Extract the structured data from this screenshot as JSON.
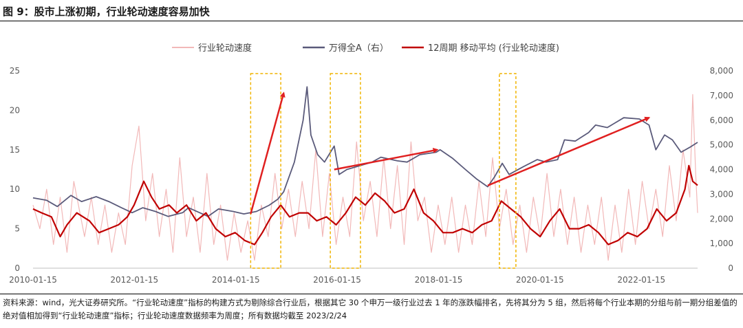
{
  "figure": {
    "title": "图 9：股市上涨初期，行业轮动速度容易加快",
    "note": "资料来源：wind，光大证券研究所。“行业轮动速度”指标的构建方式为剔除综合行业后，根据其它 30 个申万一级行业过去 1 年的涨跌幅排名，先将其分为 5 组，然后将每个行业本期的分组与前一期分组差值的绝对值相加得到“行业轮动速度”指标；行业轮动速度数据频率为周度；所有数据均截至 2023/2/24"
  },
  "colors": {
    "speed": "#f2b8b8",
    "wind_a": "#5a5a7a",
    "ma12": "#c00000",
    "arrow": "#e02020",
    "box": "#f0b400",
    "axis_text": "#595959"
  },
  "chart_data": {
    "type": "line",
    "x_tick_labels": [
      "2010-01-15",
      "2012-01-15",
      "2014-01-15",
      "2016-01-15",
      "2018-01-15",
      "2020-01-15",
      "2022-01-15"
    ],
    "x_range": [
      "2010-01-15",
      "2023-02-24"
    ],
    "y_left": {
      "range": [
        0,
        25
      ],
      "ticks": [
        0,
        5,
        10,
        15,
        20,
        25
      ]
    },
    "y_right": {
      "range": [
        0,
        8000
      ],
      "ticks": [
        "0",
        "1,000",
        "2,000",
        "3,000",
        "4,000",
        "5,000",
        "6,000",
        "7,000",
        "8,000"
      ]
    },
    "legend": {
      "position": "top",
      "entries": [
        "行业轮动速度",
        "万得全A（右）",
        "12周期 移动平均 (行业轮动速度)"
      ]
    },
    "series": [
      {
        "name": "行业轮动速度",
        "axis": "left",
        "points": [
          [
            "2010-01-15",
            8
          ],
          [
            "2010-03-05",
            5
          ],
          [
            "2010-04-23",
            10
          ],
          [
            "2010-06-11",
            3
          ],
          [
            "2010-07-30",
            9
          ],
          [
            "2010-09-17",
            2
          ],
          [
            "2010-11-05",
            11
          ],
          [
            "2011-01-21",
            4
          ],
          [
            "2011-03-11",
            9
          ],
          [
            "2011-04-29",
            3
          ],
          [
            "2011-06-17",
            8
          ],
          [
            "2011-08-05",
            2
          ],
          [
            "2011-09-23",
            7
          ],
          [
            "2011-11-11",
            3
          ],
          [
            "2011-12-30",
            13
          ],
          [
            "2012-02-17",
            18
          ],
          [
            "2012-04-06",
            6
          ],
          [
            "2012-05-25",
            12
          ],
          [
            "2012-07-13",
            4
          ],
          [
            "2012-08-31",
            10
          ],
          [
            "2012-10-19",
            2
          ],
          [
            "2012-12-07",
            14
          ],
          [
            "2013-01-25",
            4
          ],
          [
            "2013-03-15",
            9
          ],
          [
            "2013-05-03",
            2
          ],
          [
            "2013-06-21",
            12
          ],
          [
            "2013-08-09",
            3
          ],
          [
            "2013-09-27",
            8
          ],
          [
            "2013-11-15",
            1
          ],
          [
            "2014-01-03",
            7
          ],
          [
            "2014-02-21",
            2
          ],
          [
            "2014-04-11",
            6
          ],
          [
            "2014-05-30",
            1
          ],
          [
            "2014-07-18",
            8
          ],
          [
            "2014-09-05",
            4
          ],
          [
            "2014-10-24",
            12
          ],
          [
            "2014-12-12",
            5
          ],
          [
            "2015-01-30",
            10
          ],
          [
            "2015-03-20",
            4
          ],
          [
            "2015-05-08",
            11
          ],
          [
            "2015-06-26",
            5
          ],
          [
            "2015-08-14",
            15
          ],
          [
            "2015-10-02",
            4
          ],
          [
            "2015-11-20",
            12
          ],
          [
            "2016-01-08",
            3
          ],
          [
            "2016-02-26",
            9
          ],
          [
            "2016-04-15",
            4
          ],
          [
            "2016-06-03",
            16
          ],
          [
            "2016-07-22",
            6
          ],
          [
            "2016-09-09",
            11
          ],
          [
            "2016-10-28",
            4
          ],
          [
            "2016-12-16",
            14
          ],
          [
            "2017-02-03",
            5
          ],
          [
            "2017-03-24",
            13
          ],
          [
            "2017-05-12",
            3
          ],
          [
            "2017-06-30",
            16
          ],
          [
            "2017-08-18",
            6
          ],
          [
            "2017-10-06",
            9
          ],
          [
            "2017-11-24",
            2
          ],
          [
            "2018-01-12",
            8
          ],
          [
            "2018-03-02",
            3
          ],
          [
            "2018-04-20",
            9
          ],
          [
            "2018-06-08",
            2
          ],
          [
            "2018-07-27",
            8
          ],
          [
            "2018-09-14",
            3
          ],
          [
            "2018-11-02",
            11
          ],
          [
            "2018-12-21",
            4
          ],
          [
            "2019-02-08",
            14
          ],
          [
            "2019-03-29",
            5
          ],
          [
            "2019-05-17",
            10
          ],
          [
            "2019-07-05",
            3
          ],
          [
            "2019-08-23",
            8
          ],
          [
            "2019-10-11",
            2
          ],
          [
            "2019-11-29",
            9
          ],
          [
            "2020-01-17",
            4
          ],
          [
            "2020-03-06",
            12
          ],
          [
            "2020-04-24",
            4
          ],
          [
            "2020-06-12",
            10
          ],
          [
            "2020-07-31",
            3
          ],
          [
            "2020-09-18",
            9
          ],
          [
            "2020-11-06",
            2
          ],
          [
            "2020-12-25",
            8
          ],
          [
            "2021-02-12",
            3
          ],
          [
            "2021-04-02",
            9
          ],
          [
            "2021-05-21",
            1
          ],
          [
            "2021-07-09",
            8
          ],
          [
            "2021-08-27",
            2
          ],
          [
            "2021-10-15",
            10
          ],
          [
            "2021-12-03",
            3
          ],
          [
            "2022-01-21",
            11
          ],
          [
            "2022-03-11",
            5
          ],
          [
            "2022-04-29",
            10
          ],
          [
            "2022-06-17",
            4
          ],
          [
            "2022-08-05",
            13
          ],
          [
            "2022-09-23",
            6
          ],
          [
            "2022-11-11",
            15
          ],
          [
            "2022-12-30",
            9
          ],
          [
            "2023-01-20",
            22
          ],
          [
            "2023-02-10",
            12
          ],
          [
            "2023-02-24",
            7
          ]
        ]
      },
      {
        "name": "万得全A（右）",
        "axis": "right",
        "points": [
          [
            "2010-01-15",
            2850
          ],
          [
            "2010-04-23",
            2750
          ],
          [
            "2010-07-09",
            2500
          ],
          [
            "2010-10-15",
            2950
          ],
          [
            "2010-12-31",
            2700
          ],
          [
            "2011-04-15",
            2900
          ],
          [
            "2011-07-15",
            2700
          ],
          [
            "2011-10-14",
            2450
          ],
          [
            "2011-12-30",
            2250
          ],
          [
            "2012-03-16",
            2450
          ],
          [
            "2012-06-15",
            2300
          ],
          [
            "2012-09-14",
            2100
          ],
          [
            "2012-12-28",
            2250
          ],
          [
            "2013-02-08",
            2450
          ],
          [
            "2013-06-28",
            2100
          ],
          [
            "2013-09-13",
            2400
          ],
          [
            "2013-12-27",
            2300
          ],
          [
            "2014-03-14",
            2200
          ],
          [
            "2014-06-13",
            2300
          ],
          [
            "2014-09-12",
            2550
          ],
          [
            "2014-11-14",
            2800
          ],
          [
            "2014-12-26",
            3100
          ],
          [
            "2015-03-13",
            4300
          ],
          [
            "2015-05-15",
            6000
          ],
          [
            "2015-06-12",
            7350
          ],
          [
            "2015-07-10",
            5400
          ],
          [
            "2015-08-28",
            4600
          ],
          [
            "2015-10-16",
            4300
          ],
          [
            "2015-12-25",
            4950
          ],
          [
            "2016-01-29",
            3800
          ],
          [
            "2016-03-25",
            4000
          ],
          [
            "2016-06-24",
            4150
          ],
          [
            "2016-09-23",
            4300
          ],
          [
            "2016-11-25",
            4500
          ],
          [
            "2017-03-24",
            4350
          ],
          [
            "2017-06-02",
            4300
          ],
          [
            "2017-09-01",
            4600
          ],
          [
            "2017-12-29",
            4700
          ],
          [
            "2018-01-26",
            4800
          ],
          [
            "2018-04-27",
            4450
          ],
          [
            "2018-07-27",
            4000
          ],
          [
            "2018-10-19",
            3600
          ],
          [
            "2019-01-04",
            3300
          ],
          [
            "2019-02-22",
            3700
          ],
          [
            "2019-04-19",
            4250
          ],
          [
            "2019-06-07",
            3800
          ],
          [
            "2019-09-13",
            4100
          ],
          [
            "2019-12-27",
            4400
          ],
          [
            "2020-02-28",
            4300
          ],
          [
            "2020-05-22",
            4400
          ],
          [
            "2020-07-10",
            5200
          ],
          [
            "2020-09-25",
            5150
          ],
          [
            "2020-12-31",
            5500
          ],
          [
            "2021-02-19",
            5800
          ],
          [
            "2021-05-14",
            5700
          ],
          [
            "2021-09-10",
            6100
          ],
          [
            "2021-12-31",
            6050
          ],
          [
            "2022-03-11",
            5800
          ],
          [
            "2022-04-29",
            4800
          ],
          [
            "2022-07-01",
            5400
          ],
          [
            "2022-08-26",
            5200
          ],
          [
            "2022-10-28",
            4700
          ],
          [
            "2022-12-30",
            4900
          ],
          [
            "2023-02-24",
            5100
          ]
        ]
      },
      {
        "name": "12周期 移动平均 (行业轮动速度)",
        "axis": "left",
        "points": [
          [
            "2010-01-15",
            7.5
          ],
          [
            "2010-03-19",
            7
          ],
          [
            "2010-05-28",
            6.5
          ],
          [
            "2010-07-30",
            4
          ],
          [
            "2010-09-17",
            5.5
          ],
          [
            "2010-11-26",
            7
          ],
          [
            "2011-02-25",
            6
          ],
          [
            "2011-05-06",
            4.5
          ],
          [
            "2011-07-15",
            5
          ],
          [
            "2011-09-23",
            5.5
          ],
          [
            "2011-11-25",
            6.5
          ],
          [
            "2012-01-13",
            8
          ],
          [
            "2012-03-23",
            11
          ],
          [
            "2012-05-18",
            9
          ],
          [
            "2012-07-13",
            7.5
          ],
          [
            "2012-09-21",
            8
          ],
          [
            "2012-11-16",
            7
          ],
          [
            "2013-01-25",
            8
          ],
          [
            "2013-04-05",
            6
          ],
          [
            "2013-06-14",
            7
          ],
          [
            "2013-08-23",
            5
          ],
          [
            "2013-11-01",
            4
          ],
          [
            "2014-01-10",
            4.5
          ],
          [
            "2014-03-21",
            3.5
          ],
          [
            "2014-05-30",
            3
          ],
          [
            "2014-07-25",
            4.5
          ],
          [
            "2014-09-26",
            6.5
          ],
          [
            "2014-12-05",
            8
          ],
          [
            "2015-02-06",
            6.5
          ],
          [
            "2015-04-17",
            7
          ],
          [
            "2015-06-19",
            7
          ],
          [
            "2015-08-21",
            6
          ],
          [
            "2015-10-30",
            6.5
          ],
          [
            "2016-01-08",
            5.5
          ],
          [
            "2016-03-18",
            7
          ],
          [
            "2016-05-27",
            9
          ],
          [
            "2016-08-05",
            8
          ],
          [
            "2016-10-14",
            9.5
          ],
          [
            "2016-12-23",
            8.5
          ],
          [
            "2017-03-03",
            7
          ],
          [
            "2017-05-12",
            7.5
          ],
          [
            "2017-07-21",
            10
          ],
          [
            "2017-09-29",
            7
          ],
          [
            "2017-12-08",
            6
          ],
          [
            "2018-02-16",
            4.5
          ],
          [
            "2018-04-27",
            4.5
          ],
          [
            "2018-07-06",
            5
          ],
          [
            "2018-09-14",
            4.5
          ],
          [
            "2018-11-23",
            5.5
          ],
          [
            "2019-02-01",
            6
          ],
          [
            "2019-04-12",
            8.5
          ],
          [
            "2019-06-21",
            7.5
          ],
          [
            "2019-08-30",
            6.5
          ],
          [
            "2019-11-08",
            5
          ],
          [
            "2020-01-17",
            4
          ],
          [
            "2020-03-27",
            6
          ],
          [
            "2020-06-05",
            7.5
          ],
          [
            "2020-08-14",
            5
          ],
          [
            "2020-10-23",
            5
          ],
          [
            "2021-01-01",
            5.5
          ],
          [
            "2021-03-12",
            4.5
          ],
          [
            "2021-05-21",
            3
          ],
          [
            "2021-07-30",
            3.5
          ],
          [
            "2021-10-08",
            4.5
          ],
          [
            "2021-12-17",
            4
          ],
          [
            "2022-02-25",
            5
          ],
          [
            "2022-05-06",
            7.5
          ],
          [
            "2022-07-15",
            6
          ],
          [
            "2022-09-23",
            7
          ],
          [
            "2022-11-25",
            10
          ],
          [
            "2022-12-23",
            13
          ],
          [
            "2023-01-20",
            11
          ],
          [
            "2023-02-24",
            10.5
          ]
        ]
      }
    ],
    "annotations": {
      "highlight_boxes": [
        [
          "2014-05-02",
          "2014-12-05"
        ],
        [
          "2015-11-27",
          "2016-07-01"
        ],
        [
          "2019-03-29",
          "2019-07-26"
        ]
      ],
      "trend_arrows": [
        {
          "from": [
            "2014-05-02",
            2200
          ],
          "to": [
            "2014-12-26",
            7100
          ]
        },
        {
          "from": [
            "2015-12-25",
            4000
          ],
          "to": [
            "2018-01-05",
            4800
          ]
        },
        {
          "from": [
            "2019-01-04",
            3350
          ],
          "to": [
            "2022-03-11",
            6100
          ]
        }
      ]
    }
  }
}
